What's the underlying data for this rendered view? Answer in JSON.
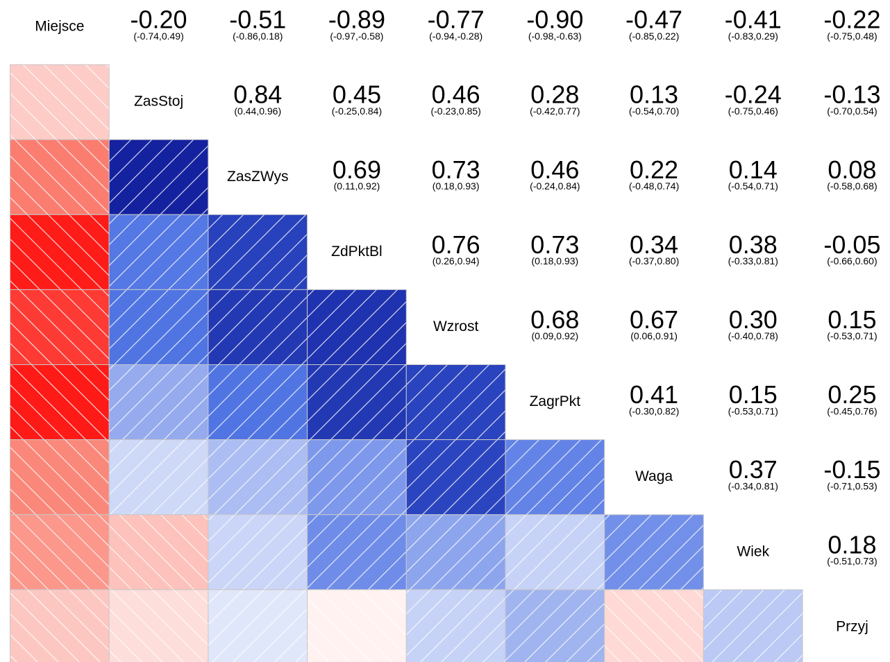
{
  "chart_data": {
    "type": "corrgram",
    "variables": [
      "Miejsce",
      "ZasStoj",
      "ZasZWys",
      "ZdPktBl",
      "Wzrost",
      "ZagrPkt",
      "Waga",
      "Wiek",
      "Przyj"
    ],
    "clim": [
      -1,
      1
    ],
    "color_scale": [
      "#ff0000",
      "#fa8072",
      "#ffffff",
      "#4169e1",
      "#000080"
    ],
    "rows": [
      {
        "values": [
          -0.2,
          -0.51,
          -0.89,
          -0.77,
          -0.9,
          -0.47,
          -0.41,
          -0.22
        ],
        "value_labels": [
          "-0.20",
          "-0.51",
          "-0.89",
          "-0.77",
          "-0.90",
          "-0.47",
          "-0.41",
          "-0.22"
        ],
        "ci_labels": [
          "(-0.74,0.49)",
          "(-0.86,0.18)",
          "(-0.97,-0.58)",
          "(-0.94,-0.28)",
          "(-0.98,-0.63)",
          "(-0.85,0.22)",
          "(-0.83,0.29)",
          "(-0.75,0.48)"
        ]
      },
      {
        "values": [
          0.84,
          0.45,
          0.46,
          0.28,
          0.13,
          -0.24,
          -0.13
        ],
        "value_labels": [
          "0.84",
          "0.45",
          "0.46",
          "0.28",
          "0.13",
          "-0.24",
          "-0.13"
        ],
        "ci_labels": [
          "(0.44,0.96)",
          "(-0.25,0.84)",
          "(-0.23,0.85)",
          "(-0.42,0.77)",
          "(-0.54,0.70)",
          "(-0.75,0.46)",
          "(-0.70,0.54)"
        ]
      },
      {
        "values": [
          0.69,
          0.73,
          0.46,
          0.22,
          0.14,
          0.08
        ],
        "value_labels": [
          "0.69",
          "0.73",
          "0.46",
          "0.22",
          "0.14",
          "0.08"
        ],
        "ci_labels": [
          "(0.11,0.92)",
          "(0.18,0.93)",
          "(-0.24,0.84)",
          "(-0.48,0.74)",
          "(-0.54,0.71)",
          "(-0.58,0.68)"
        ]
      },
      {
        "values": [
          0.76,
          0.73,
          0.34,
          0.38,
          -0.05
        ],
        "value_labels": [
          "0.76",
          "0.73",
          "0.34",
          "0.38",
          "-0.05"
        ],
        "ci_labels": [
          "(0.26,0.94)",
          "(0.18,0.93)",
          "(-0.37,0.80)",
          "(-0.33,0.81)",
          "(-0.66,0.60)"
        ]
      },
      {
        "values": [
          0.68,
          0.67,
          0.3,
          0.15
        ],
        "value_labels": [
          "0.68",
          "0.67",
          "0.30",
          "0.15"
        ],
        "ci_labels": [
          "(0.09,0.92)",
          "(0.06,0.91)",
          "(-0.40,0.78)",
          "(-0.53,0.71)"
        ]
      },
      {
        "values": [
          0.41,
          0.15,
          0.25
        ],
        "value_labels": [
          "0.41",
          "0.15",
          "0.25"
        ],
        "ci_labels": [
          "(-0.30,0.82)",
          "(-0.53,0.71)",
          "(-0.45,0.76)"
        ]
      },
      {
        "values": [
          0.37,
          -0.15
        ],
        "value_labels": [
          "0.37",
          "-0.15"
        ],
        "ci_labels": [
          "(-0.34,0.81)",
          "(-0.71,0.53)"
        ]
      },
      {
        "values": [
          0.18
        ],
        "value_labels": [
          "0.18"
        ],
        "ci_labels": [
          "(-0.51,0.73)"
        ]
      }
    ]
  }
}
